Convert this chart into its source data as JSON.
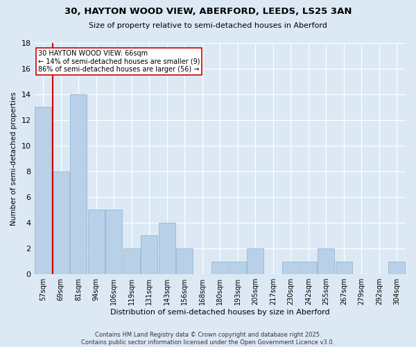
{
  "title": "30, HAYTON WOOD VIEW, ABERFORD, LEEDS, LS25 3AN",
  "subtitle": "Size of property relative to semi-detached houses in Aberford",
  "xlabel": "Distribution of semi-detached houses by size in Aberford",
  "ylabel": "Number of semi-detached properties",
  "categories": [
    "57sqm",
    "69sqm",
    "81sqm",
    "94sqm",
    "106sqm",
    "119sqm",
    "131sqm",
    "143sqm",
    "156sqm",
    "168sqm",
    "180sqm",
    "193sqm",
    "205sqm",
    "217sqm",
    "230sqm",
    "242sqm",
    "255sqm",
    "267sqm",
    "279sqm",
    "292sqm",
    "304sqm"
  ],
  "values": [
    13,
    8,
    14,
    5,
    5,
    2,
    3,
    4,
    2,
    0,
    1,
    1,
    2,
    0,
    1,
    1,
    2,
    1,
    0,
    0,
    1
  ],
  "bar_color": "#b8d0e8",
  "bar_edge_color": "#8ab0cc",
  "highlight_color": "#cc0000",
  "annotation_line1": "30 HAYTON WOOD VIEW: 66sqm",
  "annotation_line2": "← 14% of semi-detached houses are smaller (9)",
  "annotation_line3": "86% of semi-detached houses are larger (56) →",
  "ylim": [
    0,
    18
  ],
  "yticks": [
    0,
    2,
    4,
    6,
    8,
    10,
    12,
    14,
    16,
    18
  ],
  "footer": "Contains HM Land Registry data © Crown copyright and database right 2025.\nContains public sector information licensed under the Open Government Licence v3.0.",
  "bg_color": "#dce9f5",
  "grid_color": "#ffffff"
}
